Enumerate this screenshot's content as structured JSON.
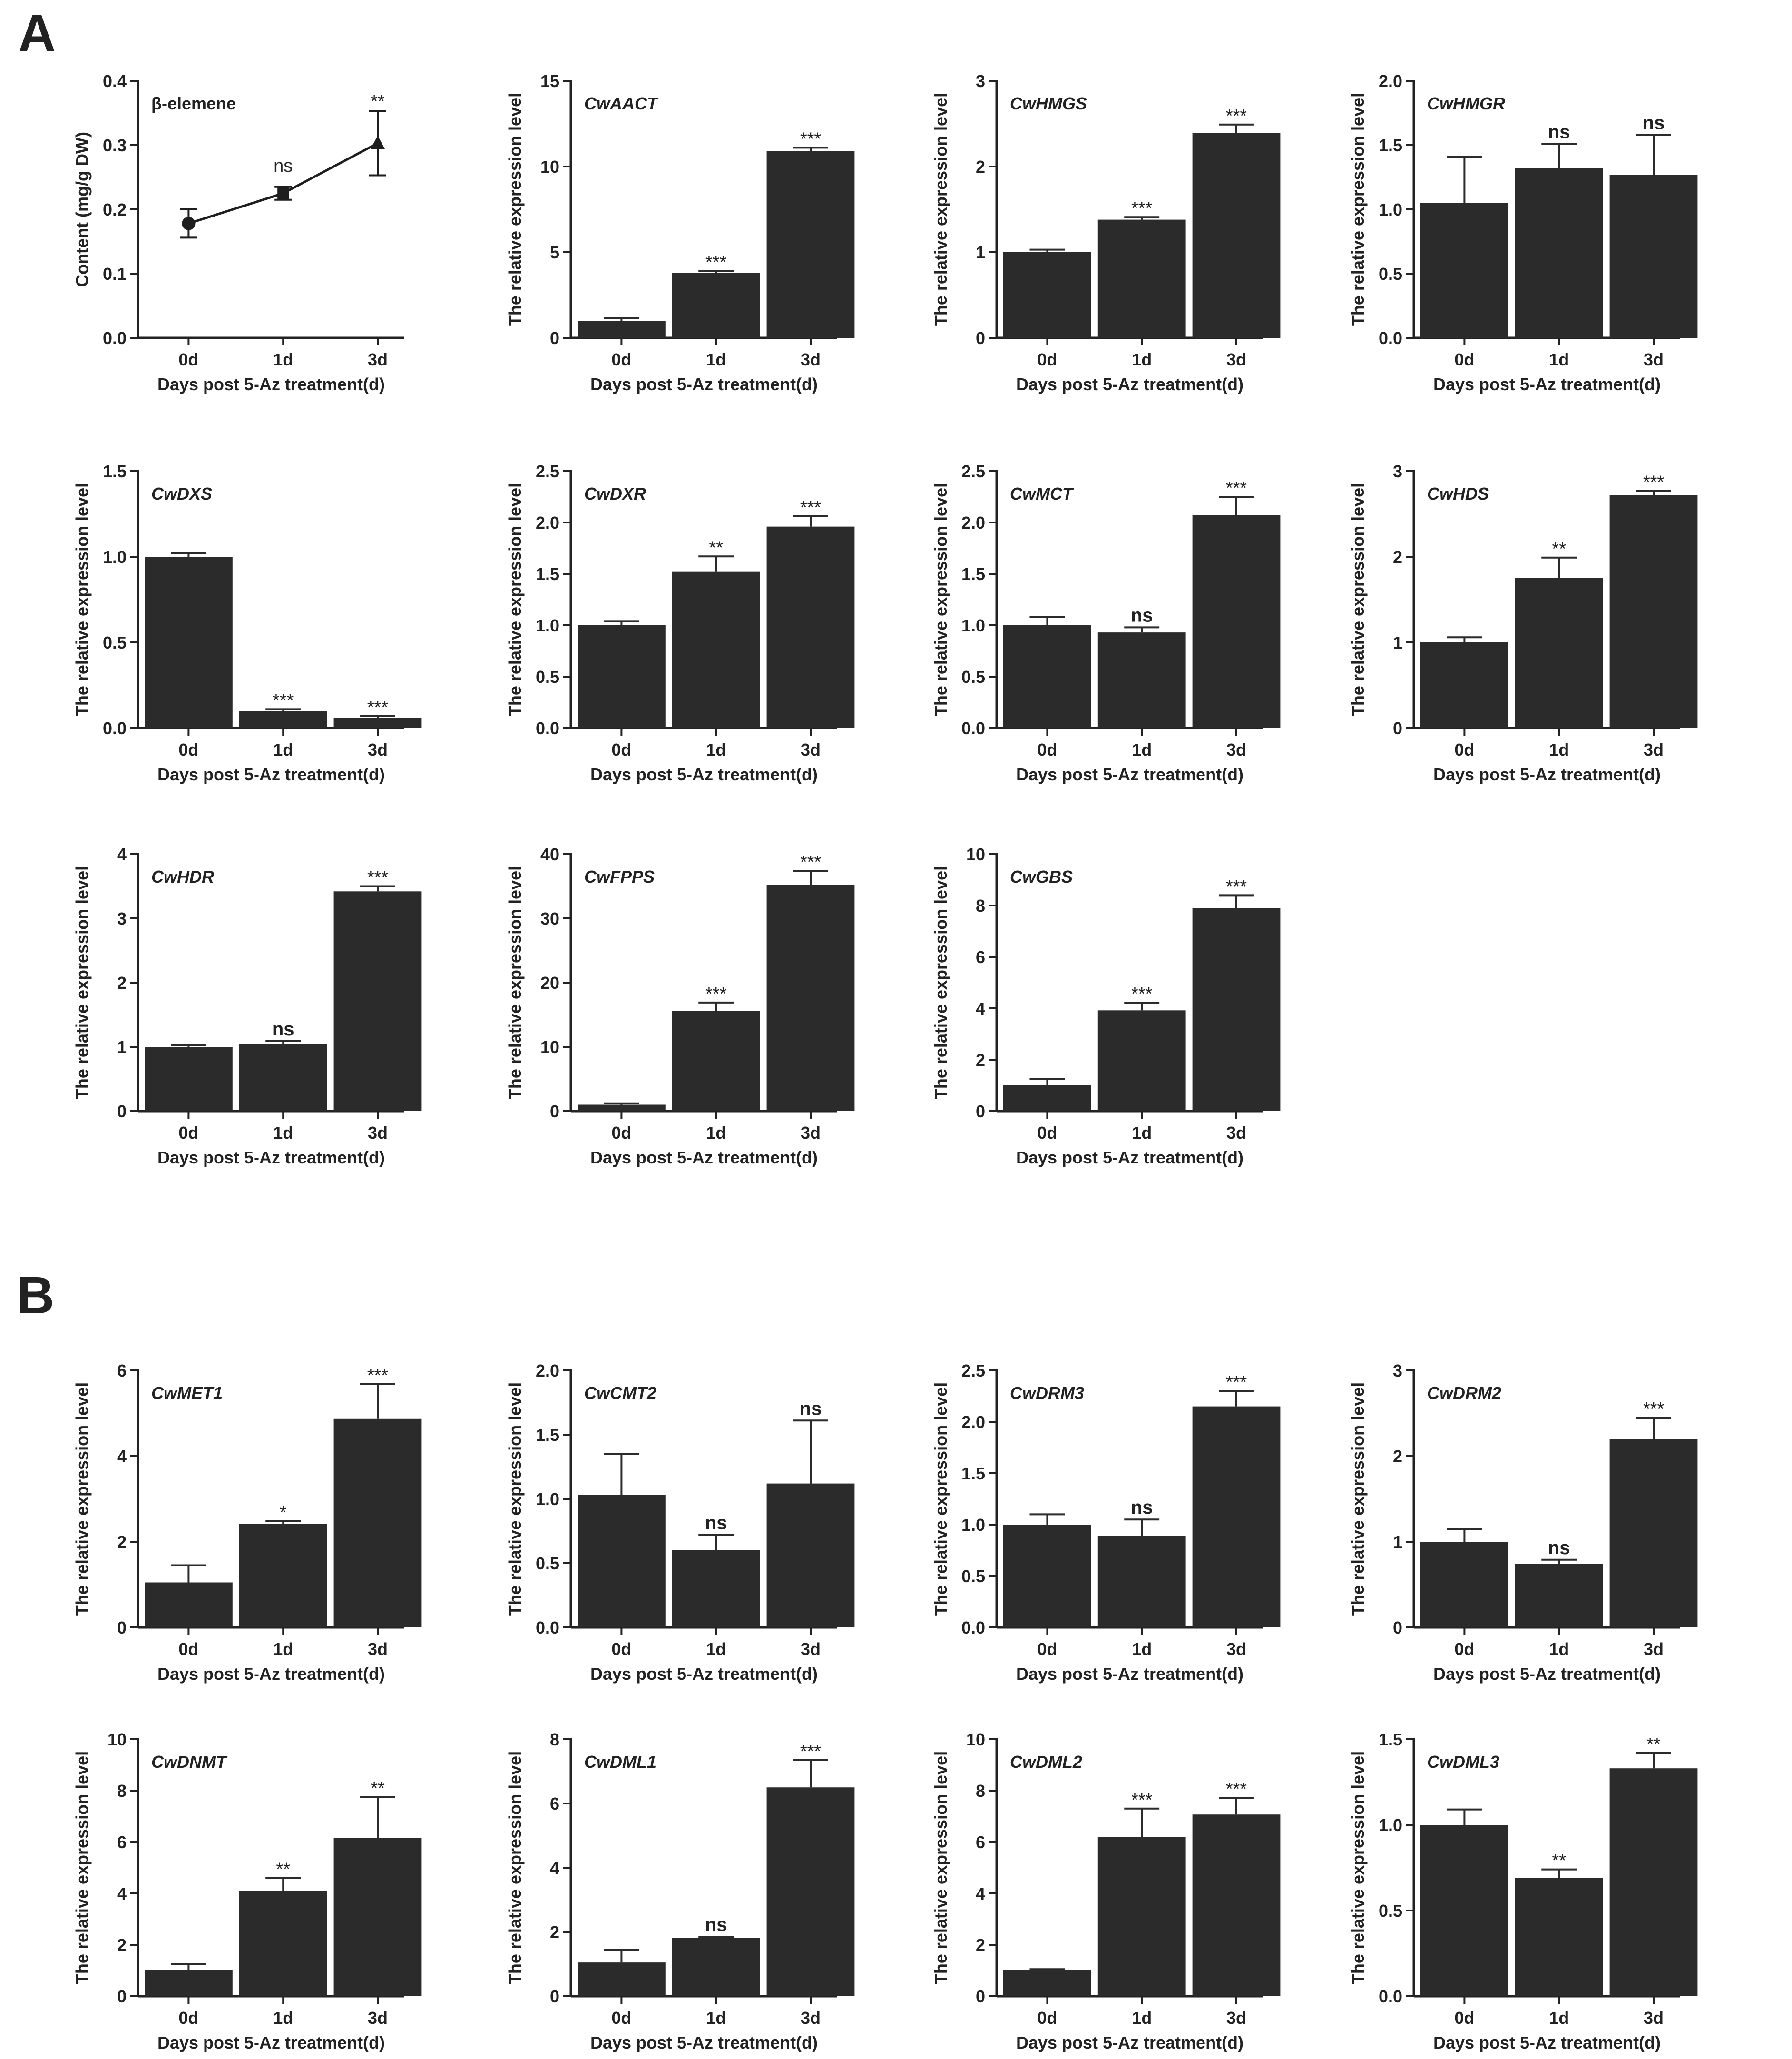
{
  "panels": [
    {
      "label": "A"
    },
    {
      "label": "B"
    }
  ],
  "chart_data": [
    {
      "type": "line",
      "title": "β-elemene",
      "xlabel": "Days post 5-Az treatment(d)",
      "ylabel": "Content (mg/g DW)",
      "categories": [
        "0d",
        "1d",
        "3d"
      ],
      "values": [
        0.178,
        0.225,
        0.303
      ],
      "errors": [
        0.022,
        0.01,
        0.05
      ],
      "sig": [
        "",
        "ns",
        "**"
      ],
      "markers": [
        "circle",
        "square",
        "triangle"
      ],
      "ylim": [
        0,
        0.4
      ],
      "yticks": [
        "0.0",
        "0.1",
        "0.2",
        "0.3",
        "0.4"
      ]
    },
    {
      "type": "bar",
      "title": "CwAACT",
      "xlabel": "Days post 5-Az treatment(d)",
      "ylabel": "The relative expression level",
      "categories": [
        "0d",
        "1d",
        "3d"
      ],
      "values": [
        1.0,
        3.8,
        10.9
      ],
      "errors": [
        0.15,
        0.1,
        0.2
      ],
      "sig": [
        "",
        "***",
        "***"
      ],
      "ylim": [
        0,
        15
      ],
      "yticks": [
        "0",
        "5",
        "10",
        "15"
      ]
    },
    {
      "type": "bar",
      "title": "CwHMGS",
      "xlabel": "Days post 5-Az treatment(d)",
      "ylabel": "The relative expression level",
      "categories": [
        "0d",
        "1d",
        "3d"
      ],
      "values": [
        1.0,
        1.38,
        2.39
      ],
      "errors": [
        0.03,
        0.03,
        0.1
      ],
      "sig": [
        "",
        "***",
        "***"
      ],
      "ylim": [
        0,
        3
      ],
      "yticks": [
        "0",
        "1",
        "2",
        "3"
      ]
    },
    {
      "type": "bar",
      "title": "CwHMGR",
      "xlabel": "Days post 5-Az treatment(d)",
      "ylabel": "The relative expression level",
      "categories": [
        "0d",
        "1d",
        "3d"
      ],
      "values": [
        1.05,
        1.32,
        1.27
      ],
      "errors": [
        0.36,
        0.19,
        0.31
      ],
      "sig": [
        "",
        "ns",
        "ns"
      ],
      "ylim": [
        0,
        2.0
      ],
      "yticks": [
        "0.0",
        "0.5",
        "1.0",
        "1.5",
        "2.0"
      ]
    },
    {
      "type": "bar",
      "title": "CwDXS",
      "xlabel": "Days post 5-Az treatment(d)",
      "ylabel": "The relative expression level",
      "categories": [
        "0d",
        "1d",
        "3d"
      ],
      "values": [
        1.0,
        0.1,
        0.06
      ],
      "errors": [
        0.02,
        0.01,
        0.01
      ],
      "sig": [
        "",
        "***",
        "***"
      ],
      "ylim": [
        0,
        1.5
      ],
      "yticks": [
        "0.0",
        "0.5",
        "1.0",
        "1.5"
      ]
    },
    {
      "type": "bar",
      "title": "CwDXR",
      "xlabel": "Days post 5-Az treatment(d)",
      "ylabel": "The relative expression level",
      "categories": [
        "0d",
        "1d",
        "3d"
      ],
      "values": [
        1.0,
        1.52,
        1.96
      ],
      "errors": [
        0.04,
        0.15,
        0.1
      ],
      "sig": [
        "",
        "**",
        "***"
      ],
      "ylim": [
        0,
        2.5
      ],
      "yticks": [
        "0.0",
        "0.5",
        "1.0",
        "1.5",
        "2.0",
        "2.5"
      ]
    },
    {
      "type": "bar",
      "title": "CwMCT",
      "xlabel": "Days post 5-Az treatment(d)",
      "ylabel": "The relative expression level",
      "categories": [
        "0d",
        "1d",
        "3d"
      ],
      "values": [
        1.0,
        0.93,
        2.07
      ],
      "errors": [
        0.08,
        0.05,
        0.18
      ],
      "sig": [
        "",
        "ns",
        "***"
      ],
      "ylim": [
        0,
        2.5
      ],
      "yticks": [
        "0.0",
        "0.5",
        "1.0",
        "1.5",
        "2.0",
        "2.5"
      ]
    },
    {
      "type": "bar",
      "title": "CwHDS",
      "xlabel": "Days post 5-Az treatment(d)",
      "ylabel": "The relative expression level",
      "categories": [
        "0d",
        "1d",
        "3d"
      ],
      "values": [
        1.0,
        1.75,
        2.72
      ],
      "errors": [
        0.06,
        0.24,
        0.05
      ],
      "sig": [
        "",
        "**",
        "***"
      ],
      "ylim": [
        0,
        3
      ],
      "yticks": [
        "0",
        "1",
        "2",
        "3"
      ]
    },
    {
      "type": "bar",
      "title": "CwHDR",
      "xlabel": "Days post 5-Az treatment(d)",
      "ylabel": "The relative expression level",
      "categories": [
        "0d",
        "1d",
        "3d"
      ],
      "values": [
        1.0,
        1.04,
        3.42
      ],
      "errors": [
        0.03,
        0.05,
        0.08
      ],
      "sig": [
        "",
        "ns",
        "***"
      ],
      "ylim": [
        0,
        4
      ],
      "yticks": [
        "0",
        "1",
        "2",
        "3",
        "4"
      ]
    },
    {
      "type": "bar",
      "title": "CwFPPS",
      "xlabel": "Days post 5-Az treatment(d)",
      "ylabel": "The relative expression level",
      "categories": [
        "0d",
        "1d",
        "3d"
      ],
      "values": [
        1.0,
        15.6,
        35.2
      ],
      "errors": [
        0.2,
        1.3,
        2.2
      ],
      "sig": [
        "",
        "***",
        "***"
      ],
      "ylim": [
        0,
        40
      ],
      "yticks": [
        "0",
        "10",
        "20",
        "30",
        "40"
      ]
    },
    {
      "type": "bar",
      "title": "CwGBS",
      "xlabel": "Days post 5-Az treatment(d)",
      "ylabel": "The relative expression level",
      "categories": [
        "0d",
        "1d",
        "3d"
      ],
      "values": [
        1.0,
        3.92,
        7.9
      ],
      "errors": [
        0.25,
        0.3,
        0.5
      ],
      "sig": [
        "",
        "***",
        "***"
      ],
      "ylim": [
        0,
        10
      ],
      "yticks": [
        "0",
        "2",
        "4",
        "6",
        "8",
        "10"
      ]
    },
    {
      "type": "bar",
      "title": "CwMET1",
      "xlabel": "Days post 5-Az treatment(d)",
      "ylabel": "The relative expression level",
      "categories": [
        "0d",
        "1d",
        "3d"
      ],
      "values": [
        1.05,
        2.42,
        4.88
      ],
      "errors": [
        0.4,
        0.06,
        0.8
      ],
      "sig": [
        "",
        "*",
        "***"
      ],
      "ylim": [
        0,
        6
      ],
      "yticks": [
        "0",
        "2",
        "4",
        "6"
      ]
    },
    {
      "type": "bar",
      "title": "CwCMT2",
      "xlabel": "Days post 5-Az treatment(d)",
      "ylabel": "The relative expression level",
      "categories": [
        "0d",
        "1d",
        "3d"
      ],
      "values": [
        1.03,
        0.6,
        1.12
      ],
      "errors": [
        0.32,
        0.12,
        0.49
      ],
      "sig": [
        "",
        "ns",
        "ns"
      ],
      "ylim": [
        0,
        2.0
      ],
      "yticks": [
        "0.0",
        "0.5",
        "1.0",
        "1.5",
        "2.0"
      ]
    },
    {
      "type": "bar",
      "title": "CwDRM3",
      "xlabel": "Days post 5-Az treatment(d)",
      "ylabel": "The relative expression level",
      "categories": [
        "0d",
        "1d",
        "3d"
      ],
      "values": [
        1.0,
        0.89,
        2.15
      ],
      "errors": [
        0.1,
        0.16,
        0.15
      ],
      "sig": [
        "",
        "ns",
        "***"
      ],
      "ylim": [
        0,
        2.5
      ],
      "yticks": [
        "0.0",
        "0.5",
        "1.0",
        "1.5",
        "2.0",
        "2.5"
      ]
    },
    {
      "type": "bar",
      "title": "CwDRM2",
      "xlabel": "Days post 5-Az treatment(d)",
      "ylabel": "The relative expression level",
      "categories": [
        "0d",
        "1d",
        "3d"
      ],
      "values": [
        1.0,
        0.74,
        2.2
      ],
      "errors": [
        0.15,
        0.05,
        0.25
      ],
      "sig": [
        "",
        "ns",
        "***"
      ],
      "ylim": [
        0,
        3
      ],
      "yticks": [
        "0",
        "1",
        "2",
        "3"
      ]
    },
    {
      "type": "bar",
      "title": "CwDNMT",
      "xlabel": "Days post 5-Az treatment(d)",
      "ylabel": "The relative expression level",
      "categories": [
        "0d",
        "1d",
        "3d"
      ],
      "values": [
        1.0,
        4.1,
        6.15
      ],
      "errors": [
        0.25,
        0.5,
        1.6
      ],
      "sig": [
        "",
        "**",
        "**"
      ],
      "ylim": [
        0,
        10
      ],
      "yticks": [
        "0",
        "2",
        "4",
        "6",
        "8",
        "10"
      ]
    },
    {
      "type": "bar",
      "title": "CwDML1",
      "xlabel": "Days post 5-Az treatment(d)",
      "ylabel": "The relative expression level",
      "categories": [
        "0d",
        "1d",
        "3d"
      ],
      "values": [
        1.05,
        1.82,
        6.5
      ],
      "errors": [
        0.4,
        0.03,
        0.85
      ],
      "sig": [
        "",
        "ns",
        "***"
      ],
      "ylim": [
        0,
        8
      ],
      "yticks": [
        "0",
        "2",
        "4",
        "6",
        "8"
      ]
    },
    {
      "type": "bar",
      "title": "CwDML2",
      "xlabel": "Days post 5-Az treatment(d)",
      "ylabel": "The relative expression level",
      "categories": [
        "0d",
        "1d",
        "3d"
      ],
      "values": [
        1.0,
        6.2,
        7.07
      ],
      "errors": [
        0.05,
        1.1,
        0.65
      ],
      "sig": [
        "",
        "***",
        "***"
      ],
      "ylim": [
        0,
        10
      ],
      "yticks": [
        "0",
        "2",
        "4",
        "6",
        "8",
        "10"
      ]
    },
    {
      "type": "bar",
      "title": "CwDML3",
      "xlabel": "Days post 5-Az treatment(d)",
      "ylabel": "The relative expression level",
      "categories": [
        "0d",
        "1d",
        "3d"
      ],
      "values": [
        1.0,
        0.69,
        1.33
      ],
      "errors": [
        0.09,
        0.05,
        0.09
      ],
      "sig": [
        "",
        "**",
        "**"
      ],
      "ylim": [
        0,
        1.5
      ],
      "yticks": [
        "0.0",
        "0.5",
        "1.0",
        "1.5"
      ]
    }
  ]
}
